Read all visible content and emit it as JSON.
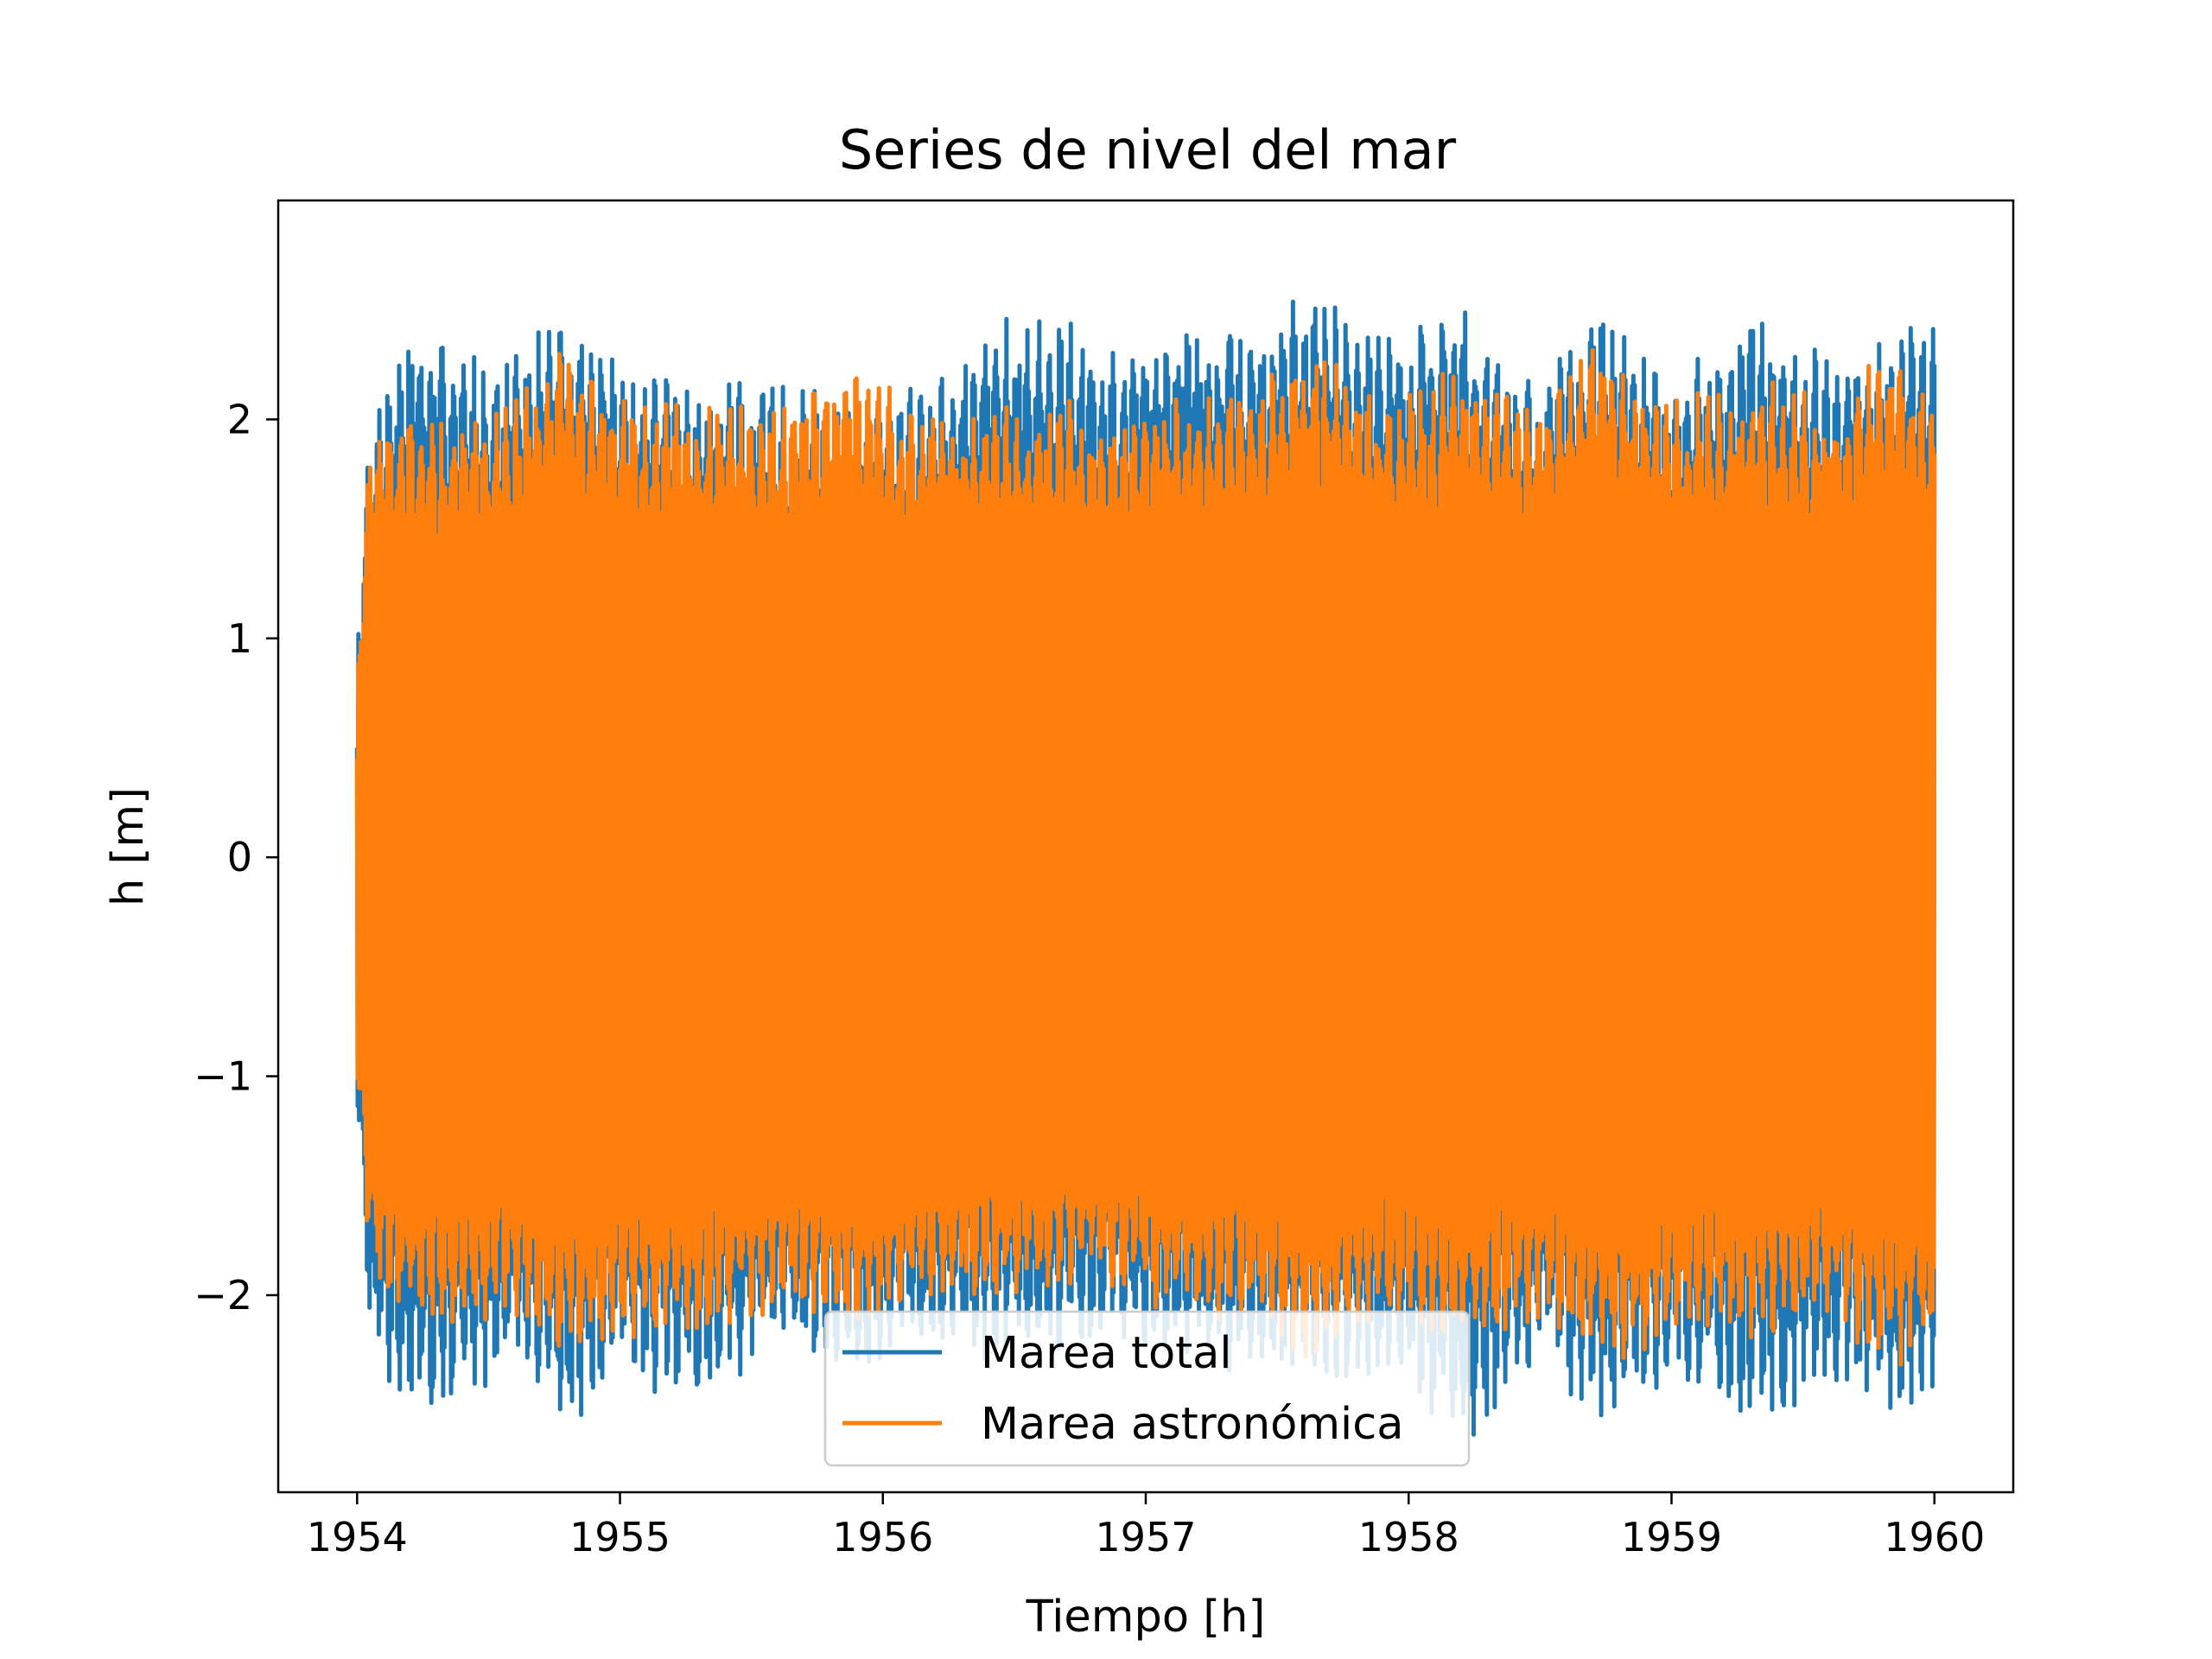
{
  "chart_data": {
    "type": "line",
    "title": "Series de nivel del mar",
    "xlabel": "Tiempo [h]",
    "ylabel": "h [m]",
    "xlim": [
      1953.7,
      1960.3
    ],
    "ylim": [
      -2.9,
      3.0
    ],
    "x_ticks": [
      1954,
      1955,
      1956,
      1957,
      1958,
      1959,
      1960
    ],
    "x_tick_labels": [
      "1954",
      "1955",
      "1956",
      "1957",
      "1958",
      "1959",
      "1960"
    ],
    "y_ticks": [
      -2,
      -1,
      0,
      1,
      2
    ],
    "y_tick_labels": [
      "−2",
      "−1",
      "0",
      "1",
      "2"
    ],
    "grid": false,
    "legend_position": "lower-center",
    "series": [
      {
        "name": "Marea total",
        "color": "#1f77b4",
        "x_range": [
          1954.0,
          1960.0
        ],
        "envelope_max": [
          [
            1954.0,
            1.0
          ],
          [
            1954.05,
            2.05
          ],
          [
            1954.2,
            2.45
          ],
          [
            1954.4,
            2.3
          ],
          [
            1954.6,
            2.3
          ],
          [
            1954.8,
            2.55
          ],
          [
            1955.0,
            2.3
          ],
          [
            1955.3,
            2.2
          ],
          [
            1955.6,
            2.2
          ],
          [
            1955.9,
            2.15
          ],
          [
            1956.1,
            2.15
          ],
          [
            1956.4,
            2.45
          ],
          [
            1956.7,
            2.5
          ],
          [
            1956.9,
            2.3
          ],
          [
            1957.1,
            2.5
          ],
          [
            1957.4,
            2.4
          ],
          [
            1957.65,
            2.65
          ],
          [
            1957.9,
            2.4
          ],
          [
            1958.2,
            2.55
          ],
          [
            1958.5,
            2.2
          ],
          [
            1958.7,
            2.55
          ],
          [
            1959.0,
            2.2
          ],
          [
            1959.3,
            2.5
          ],
          [
            1959.6,
            2.3
          ],
          [
            1959.85,
            2.5
          ],
          [
            1960.0,
            2.5
          ]
        ],
        "envelope_min": [
          [
            1954.0,
            -1.1
          ],
          [
            1954.05,
            -2.25
          ],
          [
            1954.2,
            -2.55
          ],
          [
            1954.4,
            -2.55
          ],
          [
            1954.6,
            -2.3
          ],
          [
            1954.8,
            -2.65
          ],
          [
            1955.0,
            -2.4
          ],
          [
            1955.3,
            -2.5
          ],
          [
            1955.6,
            -2.3
          ],
          [
            1955.9,
            -2.4
          ],
          [
            1956.1,
            -2.3
          ],
          [
            1956.4,
            -2.3
          ],
          [
            1956.7,
            -2.3
          ],
          [
            1956.9,
            -2.2
          ],
          [
            1957.1,
            -2.35
          ],
          [
            1957.4,
            -2.4
          ],
          [
            1957.65,
            -2.45
          ],
          [
            1957.9,
            -2.4
          ],
          [
            1958.25,
            -2.7
          ],
          [
            1958.5,
            -2.3
          ],
          [
            1958.75,
            -2.65
          ],
          [
            1959.0,
            -2.4
          ],
          [
            1959.3,
            -2.6
          ],
          [
            1959.6,
            -2.45
          ],
          [
            1959.85,
            -2.6
          ],
          [
            1960.0,
            -2.45
          ]
        ]
      },
      {
        "name": "Marea astronómica",
        "color": "#ff7f0e",
        "x_range": [
          1954.0,
          1960.0
        ],
        "envelope_max": [
          [
            1954.0,
            0.9
          ],
          [
            1954.05,
            1.95
          ],
          [
            1954.2,
            2.05
          ],
          [
            1954.4,
            2.0
          ],
          [
            1954.6,
            2.1
          ],
          [
            1954.8,
            2.35
          ],
          [
            1955.0,
            2.1
          ],
          [
            1955.3,
            2.1
          ],
          [
            1955.6,
            2.1
          ],
          [
            1955.9,
            2.35
          ],
          [
            1956.1,
            2.05
          ],
          [
            1956.4,
            2.05
          ],
          [
            1956.7,
            2.1
          ],
          [
            1956.9,
            2.0
          ],
          [
            1957.1,
            2.1
          ],
          [
            1957.4,
            2.15
          ],
          [
            1957.65,
            2.35
          ],
          [
            1957.9,
            2.1
          ],
          [
            1958.2,
            2.25
          ],
          [
            1958.5,
            2.1
          ],
          [
            1958.7,
            2.35
          ],
          [
            1959.0,
            2.1
          ],
          [
            1959.3,
            2.2
          ],
          [
            1959.6,
            2.1
          ],
          [
            1959.85,
            2.35
          ],
          [
            1960.0,
            2.1
          ]
        ],
        "envelope_min": [
          [
            1954.0,
            -1.0
          ],
          [
            1954.05,
            -1.95
          ],
          [
            1954.2,
            -2.15
          ],
          [
            1954.4,
            -2.15
          ],
          [
            1954.6,
            -2.1
          ],
          [
            1954.8,
            -2.35
          ],
          [
            1955.0,
            -2.2
          ],
          [
            1955.3,
            -2.2
          ],
          [
            1955.6,
            -2.1
          ],
          [
            1955.9,
            -2.2
          ],
          [
            1956.1,
            -2.05
          ],
          [
            1956.4,
            -2.05
          ],
          [
            1956.7,
            -2.0
          ],
          [
            1956.9,
            -2.0
          ],
          [
            1957.1,
            -2.1
          ],
          [
            1957.4,
            -2.15
          ],
          [
            1957.65,
            -2.35
          ],
          [
            1957.9,
            -2.1
          ],
          [
            1958.25,
            -2.3
          ],
          [
            1958.5,
            -2.1
          ],
          [
            1958.75,
            -2.35
          ],
          [
            1959.0,
            -2.2
          ],
          [
            1959.3,
            -2.2
          ],
          [
            1959.6,
            -2.15
          ],
          [
            1959.85,
            -2.35
          ],
          [
            1960.0,
            -2.25
          ]
        ]
      }
    ]
  }
}
